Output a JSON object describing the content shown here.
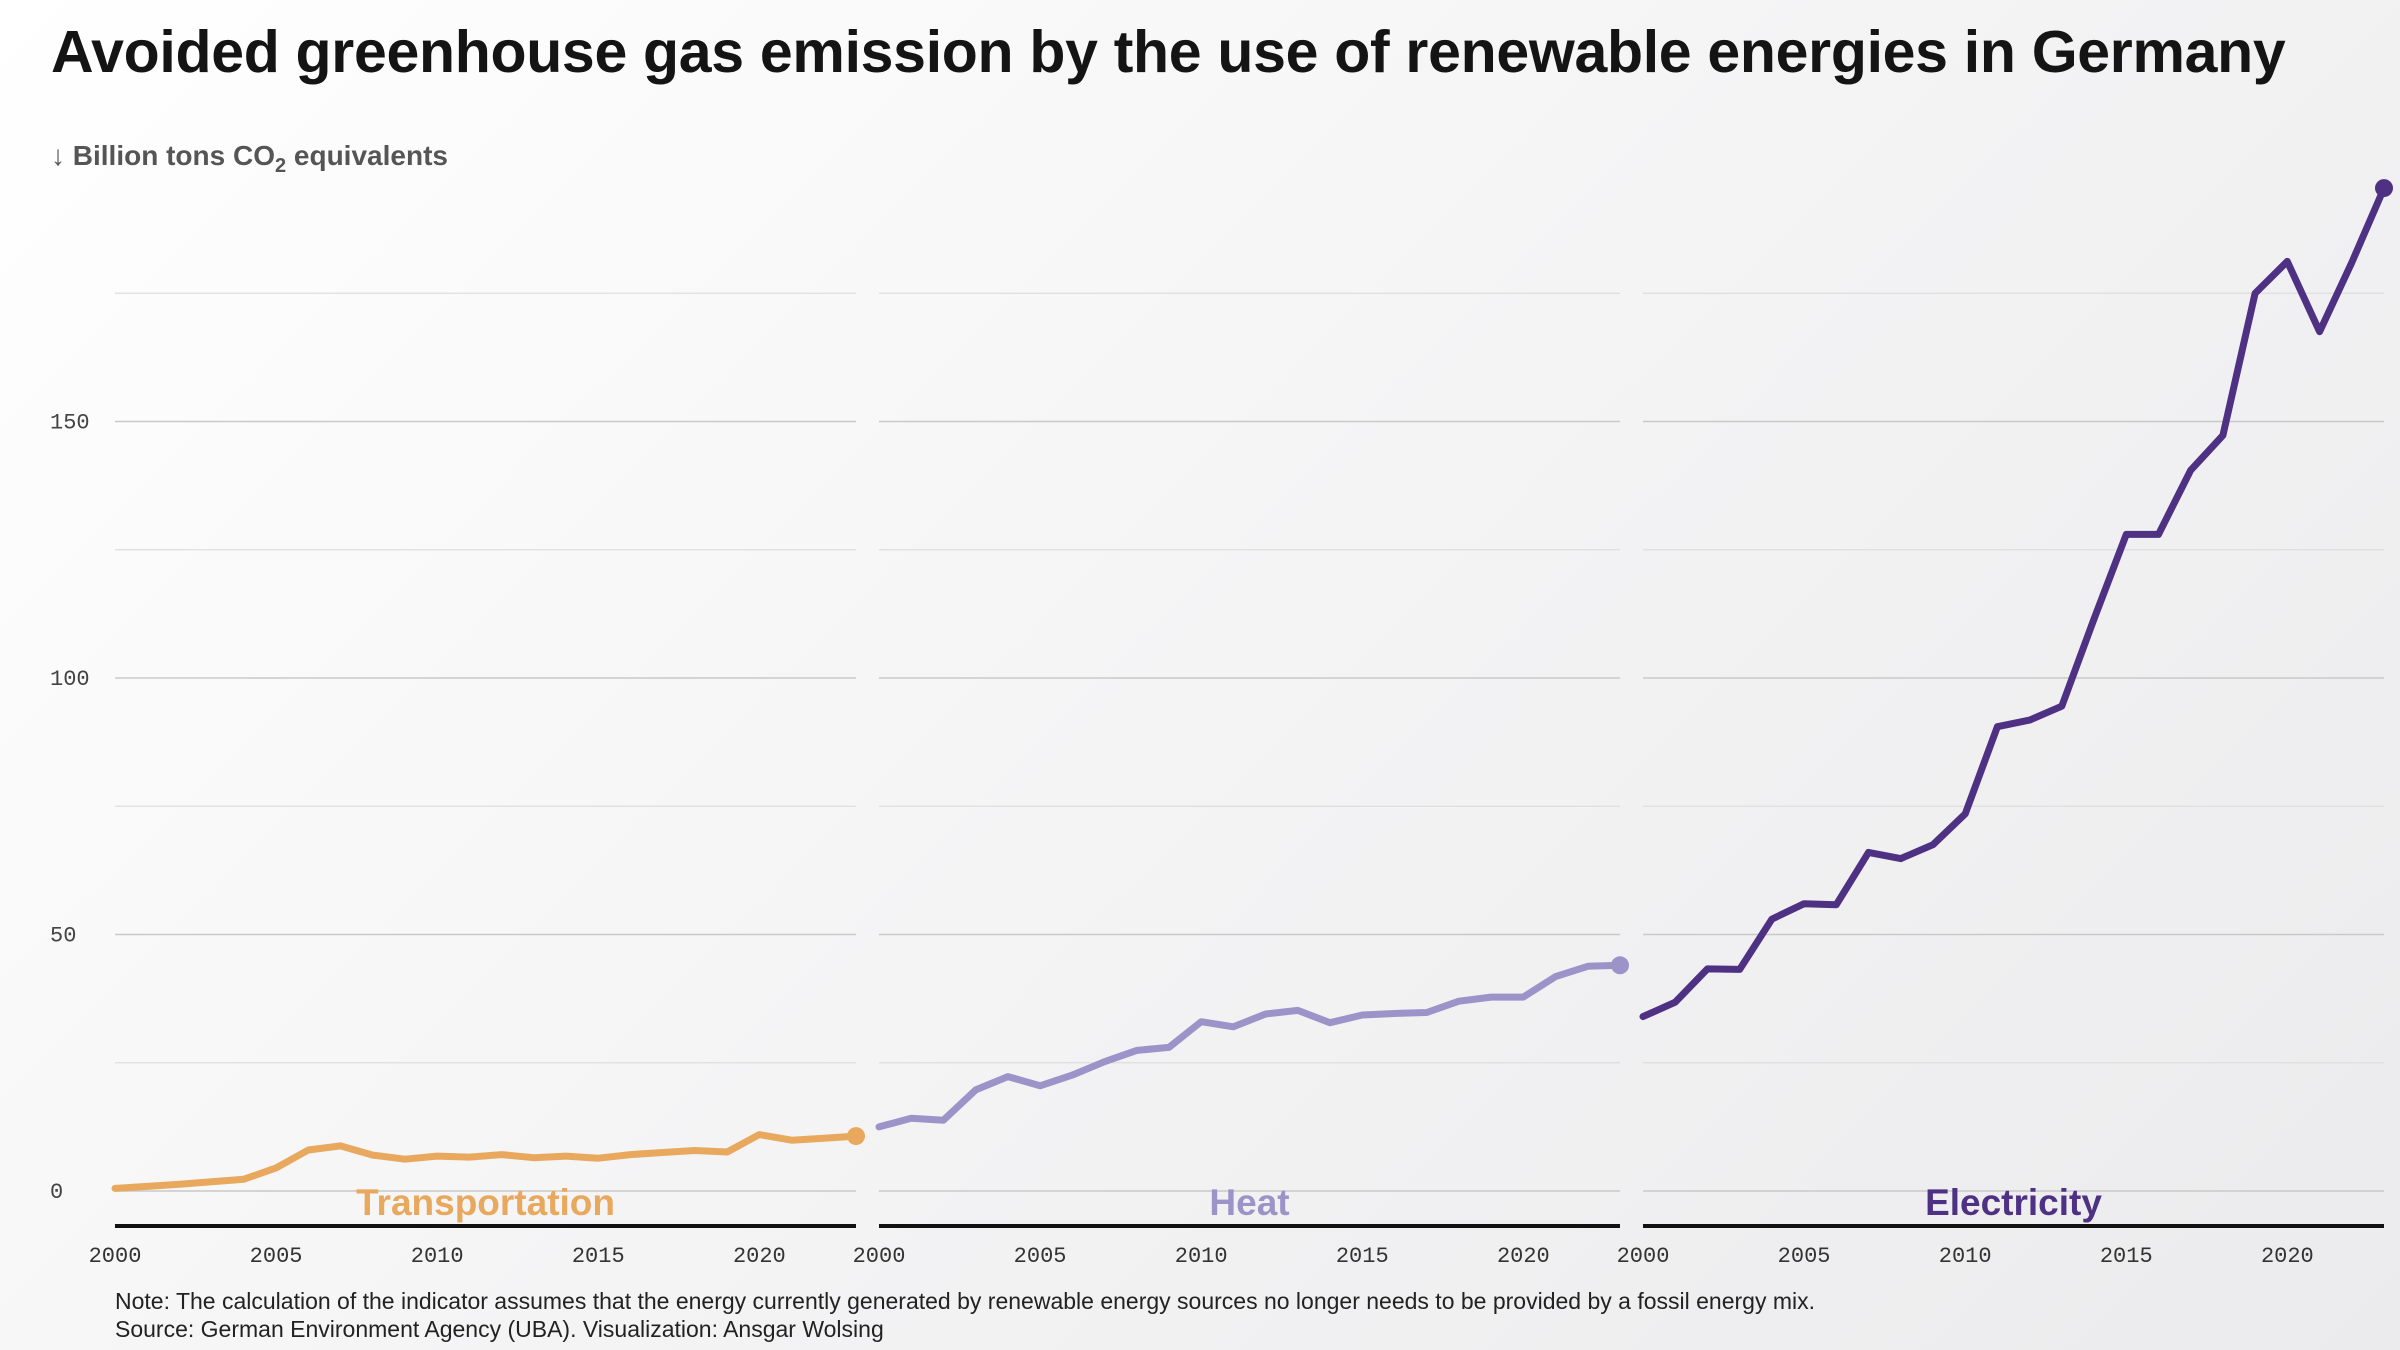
{
  "title": "Avoided greenhouse gas emission by the use of renewable energies in Germany",
  "unit": {
    "arrow": "↓",
    "text_before": "Billion tons CO",
    "subscript": "2",
    "text_after": " equivalents"
  },
  "notes": {
    "note": "Note: The calculation of the indicator assumes that the energy currently generated by renewable energy sources no longer needs to be provided by a fossil energy mix.",
    "source": "Source: German Environment Agency (UBA). Visualization: Ansgar Wolsing"
  },
  "chart_data": {
    "type": "line",
    "years": [
      2000,
      2001,
      2002,
      2003,
      2004,
      2005,
      2006,
      2007,
      2008,
      2009,
      2010,
      2011,
      2012,
      2013,
      2014,
      2015,
      2016,
      2017,
      2018,
      2019,
      2020,
      2021,
      2022,
      2023
    ],
    "ylim": [
      0,
      200
    ],
    "yticks": [
      0,
      50,
      100,
      150
    ],
    "xticks": [
      2000,
      2005,
      2010,
      2015,
      2020
    ],
    "grid": true,
    "series": [
      {
        "name": "Transportation",
        "color": "#e8a95e",
        "values": [
          0.5,
          0.9,
          1.3,
          1.8,
          2.3,
          4.5,
          8.0,
          8.8,
          7.0,
          6.2,
          6.8,
          6.6,
          7.1,
          6.5,
          6.8,
          6.4,
          7.1,
          7.5,
          7.9,
          7.6,
          11.0,
          9.9,
          10.3,
          10.7
        ]
      },
      {
        "name": "Heat",
        "color": "#9c94c8",
        "values": [
          12.5,
          14.2,
          13.8,
          19.7,
          22.3,
          20.5,
          22.6,
          25.2,
          27.4,
          28.0,
          33.0,
          32.0,
          34.5,
          35.2,
          32.8,
          34.3,
          34.6,
          34.8,
          37.0,
          37.8,
          37.8,
          41.8,
          43.8,
          44.0
        ]
      },
      {
        "name": "Electricity",
        "color": "#4f3184",
        "values": [
          34.0,
          36.8,
          43.3,
          43.2,
          53.0,
          56.0,
          55.8,
          66.0,
          64.8,
          67.5,
          73.5,
          90.5,
          91.8,
          94.5,
          111.5,
          128.0,
          128.0,
          140.5,
          147.3,
          175.0,
          181.2,
          167.5,
          181.0,
          195.5
        ]
      }
    ]
  }
}
